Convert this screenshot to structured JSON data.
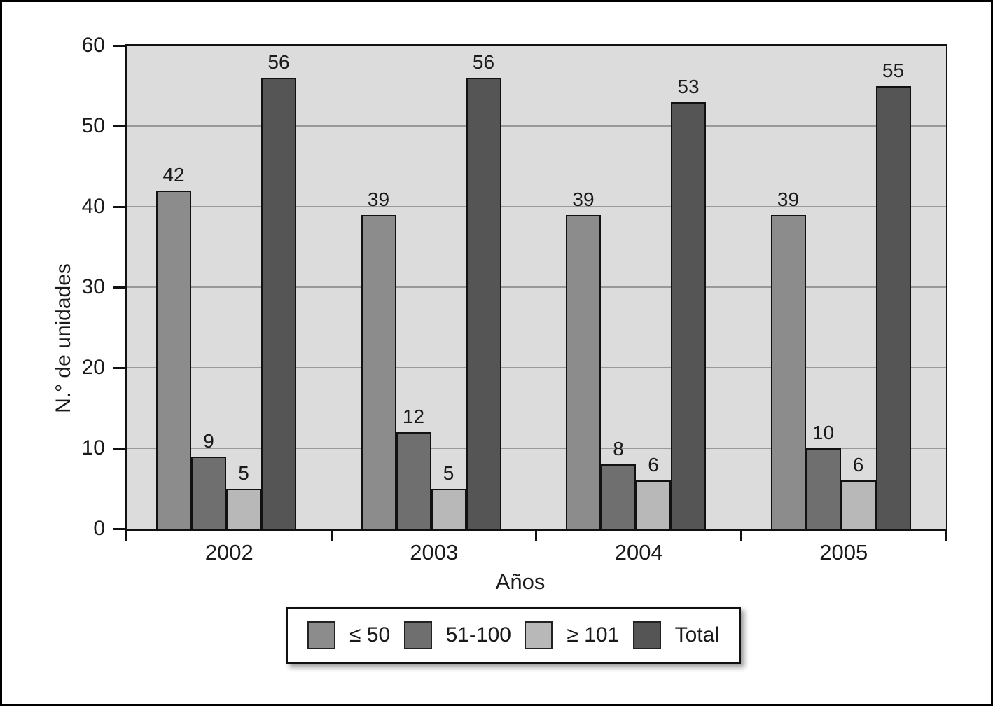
{
  "chart_data": {
    "type": "bar",
    "title": "",
    "xlabel": "Años",
    "ylabel": "N.° de unidades",
    "categories": [
      "2002",
      "2003",
      "2004",
      "2005"
    ],
    "series": [
      {
        "name": "≤ 50",
        "color": "#8c8c8c",
        "values": [
          42,
          39,
          39,
          39
        ]
      },
      {
        "name": "51-100",
        "color": "#6f6f6f",
        "values": [
          9,
          12,
          8,
          10
        ]
      },
      {
        "name": "≥ 101",
        "color": "#b8b8b8",
        "values": [
          5,
          5,
          6,
          6
        ]
      },
      {
        "name": "Total",
        "color": "#555555",
        "values": [
          56,
          56,
          53,
          55
        ]
      }
    ],
    "ylim": [
      0,
      60
    ],
    "yticks": [
      0,
      10,
      20,
      30,
      40,
      50,
      60
    ],
    "grid": true,
    "grid_color": "#999999",
    "plot_bg": "#dcdcdc",
    "axis_color": "#111111",
    "legend_position": "bottom",
    "value_labels": true
  }
}
